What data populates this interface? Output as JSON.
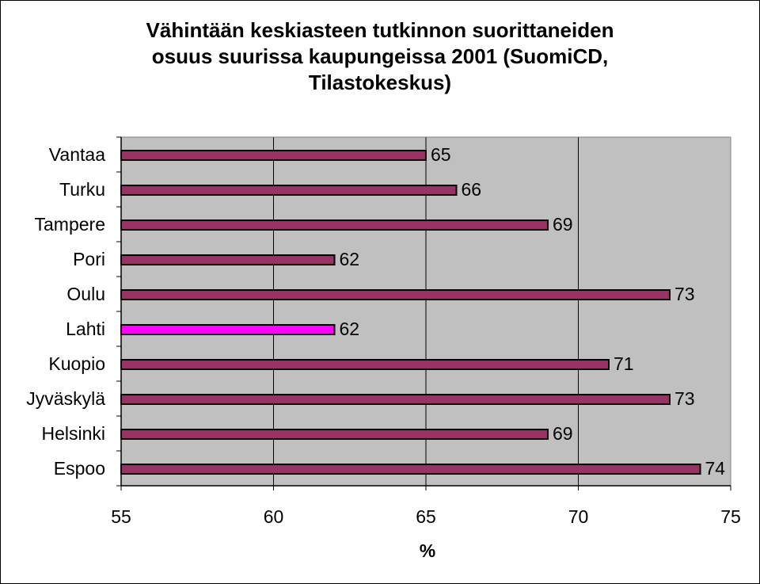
{
  "chart_data": {
    "type": "bar",
    "orientation": "horizontal",
    "title_lines": [
      "Vähintään keskiasteen tutkinnon suorittaneiden",
      "osuus suurissa kaupungeissa 2001 (SuomiCD,",
      "Tilastokeskus)"
    ],
    "categories": [
      "Vantaa",
      "Turku",
      "Tampere",
      "Pori",
      "Oulu",
      "Lahti",
      "Kuopio",
      "Jyväskylä",
      "Helsinki",
      "Espoo"
    ],
    "values": [
      65,
      66,
      69,
      62,
      73,
      62,
      71,
      73,
      69,
      74
    ],
    "data_labels": [
      "65",
      "66",
      "69",
      "62",
      "73",
      "62",
      "71",
      "73",
      "69",
      "74"
    ],
    "xlabel": "%",
    "ylabel": "",
    "xlim": [
      55,
      75
    ],
    "x_ticks": [
      55,
      60,
      65,
      70,
      75
    ],
    "x_tick_labels": [
      "55",
      "60",
      "65",
      "70",
      "75"
    ],
    "grid": "vertical",
    "legend": "none",
    "colors": {
      "bar": "#993366",
      "highlight_bar": "#ff00ff",
      "plot_background": "#c0c0c0",
      "gridline": "#000000"
    },
    "highlight_category": "Lahti"
  }
}
